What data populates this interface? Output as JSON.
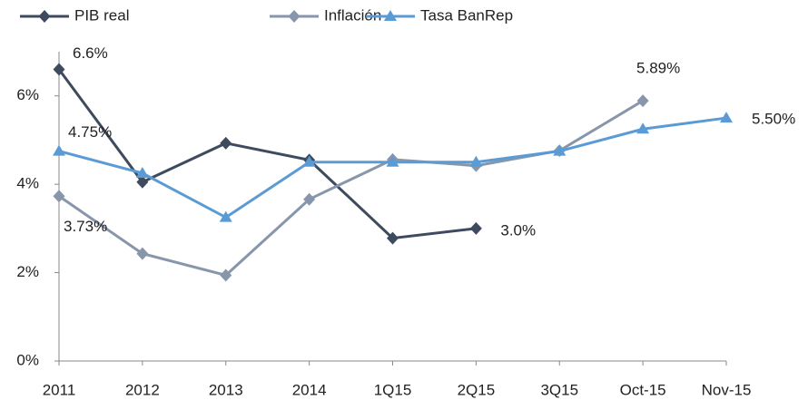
{
  "chart_data": {
    "type": "line",
    "categories": [
      "2011",
      "2012",
      "2013",
      "2014",
      "1Q15",
      "2Q15",
      "3Q15",
      "Oct-15",
      "Nov-15"
    ],
    "series": [
      {
        "name": "PIB real",
        "color": "#3e4b5e",
        "marker": "diamond",
        "values": [
          6.6,
          4.05,
          4.93,
          4.55,
          2.78,
          3.0,
          null,
          null,
          null
        ],
        "value_labels": [
          "6.6%",
          null,
          null,
          null,
          null,
          "3.0%",
          null,
          null,
          null
        ]
      },
      {
        "name": "Inflación",
        "color": "#8896ab",
        "marker": "diamond",
        "values": [
          3.73,
          2.43,
          1.94,
          3.66,
          4.56,
          4.42,
          4.76,
          5.89,
          null
        ],
        "value_labels": [
          "3.73%",
          null,
          null,
          null,
          null,
          null,
          null,
          "5.89%",
          null
        ]
      },
      {
        "name": "Tasa BanRep",
        "color": "#5b9bd5",
        "marker": "triangle",
        "values": [
          4.75,
          4.25,
          3.25,
          4.5,
          4.5,
          4.5,
          4.75,
          5.25,
          5.5
        ],
        "value_labels": [
          "4.75%",
          null,
          null,
          null,
          null,
          null,
          null,
          null,
          "5.50%"
        ]
      }
    ],
    "ylim": [
      0,
      7
    ],
    "yticks": [
      {
        "value": 0,
        "label": "0%"
      },
      {
        "value": 2,
        "label": "2%"
      },
      {
        "value": 4,
        "label": "4%"
      },
      {
        "value": 6,
        "label": "6%"
      }
    ],
    "grid": false,
    "legend": "top"
  }
}
